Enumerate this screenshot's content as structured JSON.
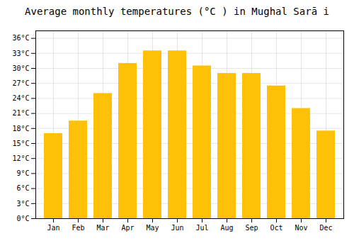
{
  "chart_data": {
    "type": "bar",
    "title": "Average monthly temperatures (°C ) in Mughal Sarā i",
    "categories": [
      "Jan",
      "Feb",
      "Mar",
      "Apr",
      "May",
      "Jun",
      "Jul",
      "Aug",
      "Sep",
      "Oct",
      "Nov",
      "Dec"
    ],
    "values": [
      17,
      19.5,
      25,
      31,
      33.5,
      33.5,
      30.5,
      29,
      29,
      26.5,
      22,
      17.5
    ],
    "color": "#FFC107",
    "ylim": [
      0,
      37.5
    ],
    "yticks": [
      {
        "value": 0,
        "label": "0°C"
      },
      {
        "value": 3,
        "label": "3°C"
      },
      {
        "value": 6,
        "label": "6°C"
      },
      {
        "value": 9,
        "label": "9°C"
      },
      {
        "value": 12,
        "label": "12°C"
      },
      {
        "value": 15,
        "label": "15°C"
      },
      {
        "value": 18,
        "label": "18°C"
      },
      {
        "value": 21,
        "label": "21°C"
      },
      {
        "value": 24,
        "label": "24°C"
      },
      {
        "value": 27,
        "label": "27°C"
      },
      {
        "value": 30,
        "label": "30°C"
      },
      {
        "value": 33,
        "label": "33°C"
      },
      {
        "value": 36,
        "label": "36°C"
      }
    ],
    "grid": true
  }
}
